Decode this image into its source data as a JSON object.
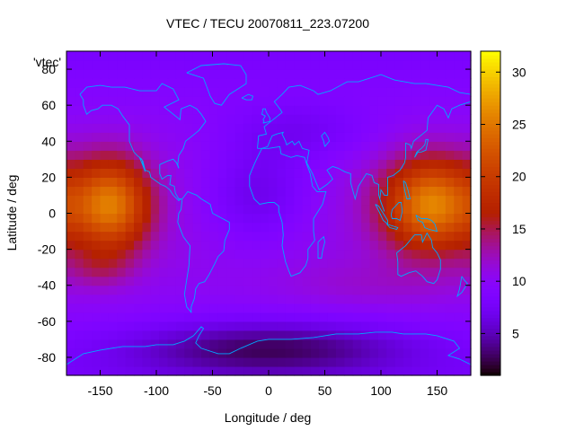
{
  "chart_data": {
    "type": "heatmap",
    "title": "VTEC / TECU 20070811_223.07200",
    "xlabel": "Longitude / deg",
    "ylabel": "Latitude / deg",
    "legend_entry": "'vtec'",
    "xlim": [
      -180,
      180
    ],
    "ylim": [
      -90,
      90
    ],
    "xticks": [
      -150,
      -100,
      -50,
      0,
      50,
      100,
      150
    ],
    "yticks": [
      -80,
      -60,
      -40,
      -20,
      0,
      20,
      40,
      60,
      80
    ],
    "colorbar": {
      "range": [
        1,
        32
      ],
      "ticks": [
        5,
        10,
        15,
        20,
        25,
        30
      ]
    },
    "grid": false,
    "palette": "gnuplot default (black-purple-red-orange-yellow)",
    "overlay": "continent outlines",
    "overlay_color": "#00a8ff",
    "field_features": [
      {
        "description": "equatorial crest, east Pacific",
        "lon": -140,
        "lat": 5,
        "peak_vtec": 24
      },
      {
        "description": "equatorial crest, west Pacific / Asia",
        "lon": 145,
        "lat": 5,
        "peak_vtec": 25
      },
      {
        "description": "background minimum, Antarctica",
        "lon": 0,
        "lat": -75,
        "peak_vtec": 3
      },
      {
        "description": "background minimum, Africa-Atlantic",
        "lon": -10,
        "lat": 10,
        "peak_vtec": 6
      }
    ]
  }
}
